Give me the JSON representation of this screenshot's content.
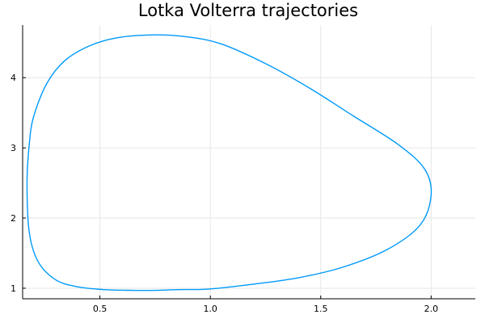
{
  "chart_data": {
    "type": "line",
    "title": "Lotka Volterra trajectories",
    "xlabel": "",
    "ylabel": "",
    "xlim": [
      0.15,
      2.2
    ],
    "ylim": [
      0.85,
      4.75
    ],
    "xticks": [
      0.5,
      1.0,
      1.5,
      2.0
    ],
    "xtick_labels": [
      "0.5",
      "1.0",
      "1.5",
      "2.0"
    ],
    "yticks": [
      1,
      2,
      3,
      4
    ],
    "ytick_labels": [
      "1",
      "2",
      "3",
      "4"
    ],
    "grid": true,
    "legend": "none",
    "series": [
      {
        "color": "#009af9",
        "closed": true,
        "x": [
          1.0,
          1.2,
          1.4,
          1.6,
          1.8,
          1.95,
          2.0,
          1.97,
          1.85,
          1.65,
          1.45,
          1.25,
          1.05,
          0.9,
          0.75,
          0.58,
          0.45,
          0.34,
          0.26,
          0.2,
          0.18,
          0.17,
          0.18,
          0.22,
          0.3,
          0.4,
          0.52,
          0.65,
          0.75,
          0.85,
          1.0
        ],
        "y": [
          0.99,
          1.06,
          1.15,
          1.3,
          1.55,
          1.9,
          2.33,
          2.7,
          3.05,
          3.45,
          3.85,
          4.2,
          4.48,
          4.58,
          4.61,
          4.57,
          4.45,
          4.24,
          3.92,
          3.45,
          3.05,
          2.5,
          1.8,
          1.38,
          1.12,
          1.02,
          0.98,
          0.97,
          0.97,
          0.98,
          0.99
        ]
      }
    ]
  }
}
